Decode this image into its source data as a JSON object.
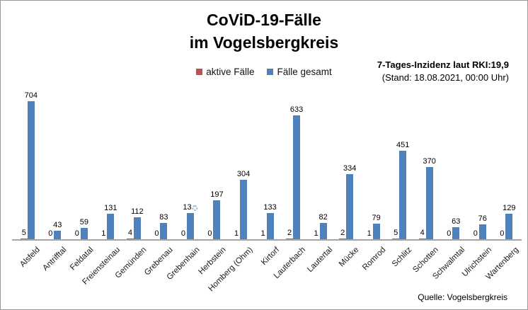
{
  "title": {
    "line1": "CoViD-19-Fälle",
    "line2": "im Vogelsbergkreis"
  },
  "legend": {
    "items": [
      {
        "label": "aktive Fälle",
        "color": "#C0504D"
      },
      {
        "label": "Fälle gesamt",
        "color": "#4F81BD"
      }
    ]
  },
  "incidence_note": {
    "line1": "7-Tages-Inzidenz laut RKI:19,9",
    "line2": "(Stand: 18.08.2021, 00:00 Uhr)"
  },
  "source": "Quelle: Vogelsbergkreis",
  "cursor_overlay": {
    "icon": "busy-cursor-icon",
    "description": "Windows busy-spinner mouse cursor covering the last digit of the Grebenhain total data label",
    "over_category_index": 6
  },
  "chart_data": {
    "type": "bar",
    "title": "CoViD-19-Fälle im Vogelsbergkreis",
    "xlabel": "",
    "ylabel": "",
    "ylim": [
      0,
      760
    ],
    "grid": false,
    "legend_position": "top-center",
    "data_labels": true,
    "categories": [
      "Alsfeld",
      "Antrifftal",
      "Feldatal",
      "Freiensteinau",
      "Gemünden",
      "Grebenau",
      "Grebenhain",
      "Herbstein",
      "Homberg (Ohm)",
      "Kirtorf",
      "Lauterbach",
      "Lautertal",
      "Mücke",
      "Romrod",
      "Schlitz",
      "Schotten",
      "Schwalmtal",
      "Ulrichstein",
      "Wartenberg"
    ],
    "series": [
      {
        "name": "aktive Fälle",
        "color": "#C0504D",
        "values": [
          5,
          0,
          0,
          1,
          4,
          0,
          0,
          0,
          1,
          1,
          2,
          1,
          2,
          1,
          5,
          4,
          0,
          0,
          0
        ]
      },
      {
        "name": "Fälle gesamt",
        "color": "#4F81BD",
        "values": [
          704,
          43,
          59,
          131,
          112,
          83,
          134,
          197,
          304,
          133,
          633,
          82,
          334,
          79,
          451,
          370,
          63,
          76,
          129
        ]
      }
    ],
    "total_labels_display": [
      "704",
      "43",
      "59",
      "131",
      "112",
      "83",
      "13",
      "197",
      "304",
      "133",
      "633",
      "82",
      "334",
      "79",
      "451",
      "370",
      "63",
      "76",
      "129"
    ],
    "cursor_index": 6,
    "note": "Grebenhain total label third digit hidden by mouse busy cursor; bar height implies ~134"
  }
}
